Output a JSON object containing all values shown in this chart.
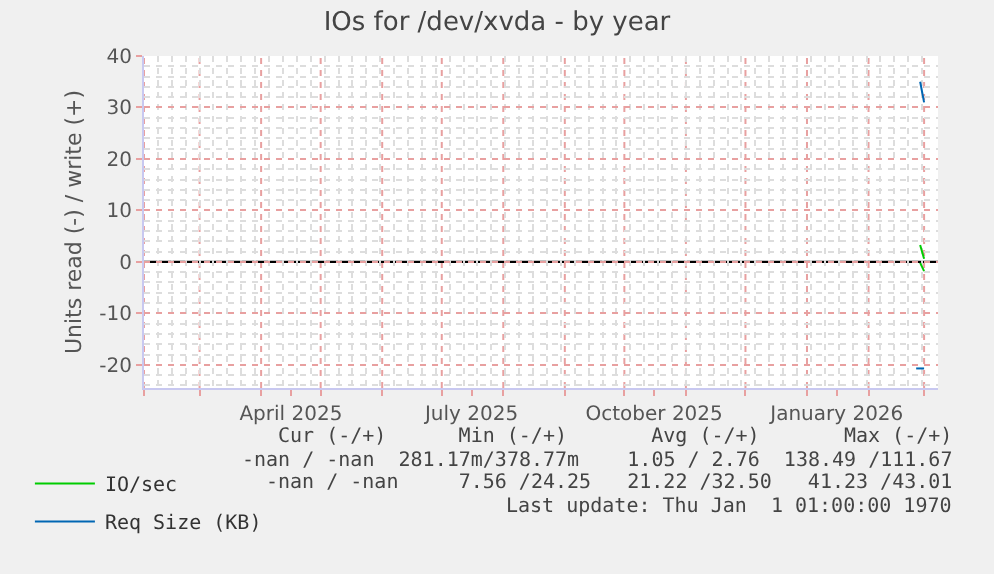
{
  "chart_data": {
    "type": "line",
    "title": "IOs for /dev/xvda - by year",
    "ylabel": "Units read (-) / write (+)",
    "xlim": [
      "2025-02-01",
      "2026-03-08"
    ],
    "xticks": [
      {
        "value": "2025-02-01",
        "label": null
      },
      {
        "value": "2025-03-01",
        "label": null
      },
      {
        "value": "2025-04-01",
        "label": null
      },
      {
        "value": "2025-04-16",
        "label": "April 2025"
      },
      {
        "value": "2025-05-01",
        "label": null
      },
      {
        "value": "2025-06-01",
        "label": null
      },
      {
        "value": "2025-07-01",
        "label": null
      },
      {
        "value": "2025-07-16",
        "label": "July 2025"
      },
      {
        "value": "2025-08-01",
        "label": null
      },
      {
        "value": "2025-09-01",
        "label": null
      },
      {
        "value": "2025-10-01",
        "label": null
      },
      {
        "value": "2025-10-16",
        "label": "October 2025"
      },
      {
        "value": "2025-11-01",
        "label": null
      },
      {
        "value": "2025-12-01",
        "label": null
      },
      {
        "value": "2026-01-01",
        "label": null
      },
      {
        "value": "2026-01-16",
        "label": "January 2026"
      },
      {
        "value": "2026-02-01",
        "label": null
      },
      {
        "value": "2026-03-01",
        "label": null
      }
    ],
    "ylim": [
      -24.5,
      40
    ],
    "yticks": [
      -20,
      -10,
      0,
      10,
      20,
      30,
      40
    ],
    "grid": true,
    "legend": "bottom left",
    "series": [
      {
        "name": "IO/sec",
        "color": "#00cc00",
        "x": [
          "2026-02-27",
          "2026-03-01"
        ],
        "values": [
          3.3,
          0.6
        ]
      },
      {
        "color": "#00cc00",
        "x": [
          "2026-02-27",
          "2026-03-01"
        ],
        "values": [
          -0.2,
          -1.8
        ]
      },
      {
        "name": "Req Size (KB)",
        "color": "#0066b3",
        "x": [
          "2026-02-27",
          "2026-03-01"
        ],
        "values": [
          35,
          31
        ]
      },
      {
        "color": "#0066b3",
        "x": [
          "2026-02-25",
          "2026-03-01"
        ],
        "values": [
          -20.7,
          -20.7
        ]
      }
    ],
    "ref_lines": [
      {
        "axis": "y",
        "value": 0,
        "color": "#000000"
      }
    ],
    "annotations": [
      "Cur (-/+)      Min (-/+)       Avg (-/+)       Max (-/+)",
      "-nan / -nan  281.17m/378.77m    1.05 / 2.76  138.49 /111.67",
      "-nan / -nan     7.56 /24.25   21.22 /32.50   41.23 /43.01",
      "Last update: Thu Jan  1 01:00:00 1970"
    ]
  }
}
